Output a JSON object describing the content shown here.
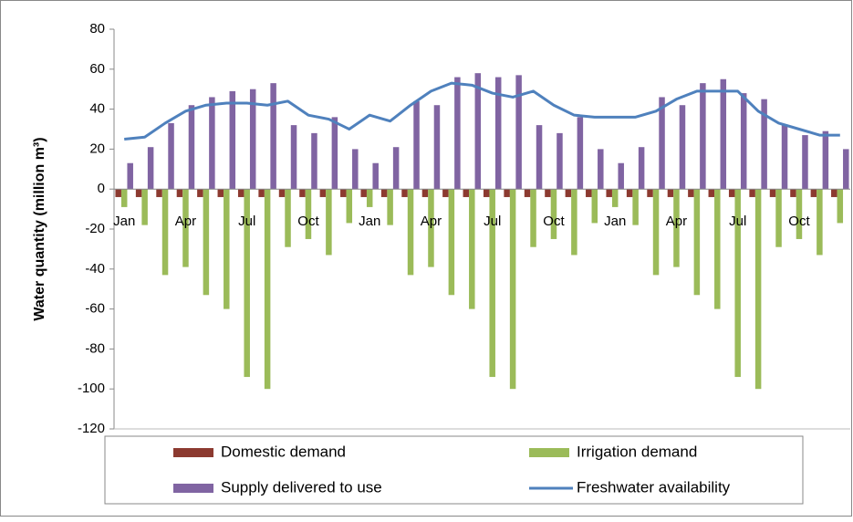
{
  "chart_data": {
    "type": "bar_line",
    "y_label": "Water quantity (million m³)",
    "categories": [
      "Jan",
      null,
      null,
      "Apr",
      null,
      null,
      "Jul",
      null,
      null,
      "Oct",
      null,
      null,
      "Jan",
      null,
      null,
      "Apr",
      null,
      null,
      "Jul",
      null,
      null,
      "Oct",
      null,
      null,
      "Jan",
      null,
      null,
      "Apr",
      null,
      null,
      "Jul",
      null,
      null,
      "Oct",
      null,
      null
    ],
    "series": [
      {
        "name": "Domestic demand",
        "color": "#8c3a30",
        "kind": "bar",
        "values": [
          -4,
          -4,
          -4,
          -4,
          -4,
          -4,
          -4,
          -4,
          -4,
          -4,
          -4,
          -4,
          -4,
          -4,
          -4,
          -4,
          -4,
          -4,
          -4,
          -4,
          -4,
          -4,
          -4,
          -4,
          -4,
          -4,
          -4,
          -4,
          -4,
          -4,
          -4,
          -4,
          -4,
          -4,
          -4,
          -4
        ]
      },
      {
        "name": "Irrigation demand",
        "color": "#9bbb59",
        "kind": "bar",
        "values": [
          -9,
          -18,
          -43,
          -39,
          -53,
          -60,
          -94,
          -100,
          -29,
          -25,
          -33,
          -17,
          -9,
          -18,
          -43,
          -39,
          -53,
          -60,
          -94,
          -100,
          -29,
          -25,
          -33,
          -17,
          -9,
          -18,
          -43,
          -39,
          -53,
          -60,
          -94,
          -100,
          -29,
          -25,
          -33,
          -17
        ]
      },
      {
        "name": "Supply delivered to use",
        "color": "#8064a2",
        "kind": "bar",
        "values": [
          13,
          21,
          33,
          42,
          46,
          49,
          50,
          53,
          32,
          28,
          36,
          20,
          13,
          21,
          44,
          42,
          56,
          58,
          56,
          57,
          32,
          28,
          36,
          20,
          13,
          21,
          46,
          42,
          53,
          55,
          48,
          45,
          32,
          27,
          29,
          20
        ]
      },
      {
        "name": "Freshwater availability",
        "color": "#4f81bd",
        "kind": "line",
        "values": [
          25,
          26,
          33,
          39,
          42,
          43,
          43,
          42,
          44,
          37,
          35,
          30,
          37,
          34,
          42,
          49,
          53,
          52,
          48,
          46,
          49,
          42,
          37,
          36,
          36,
          36,
          39,
          45,
          49,
          49,
          49,
          39,
          33,
          30,
          27,
          27
        ]
      }
    ],
    "ylim": [
      -120,
      80
    ],
    "yticks": [
      -120,
      -100,
      -80,
      -60,
      -40,
      -20,
      0,
      20,
      40,
      60,
      80
    ],
    "grid": false,
    "legend": "bottom"
  }
}
